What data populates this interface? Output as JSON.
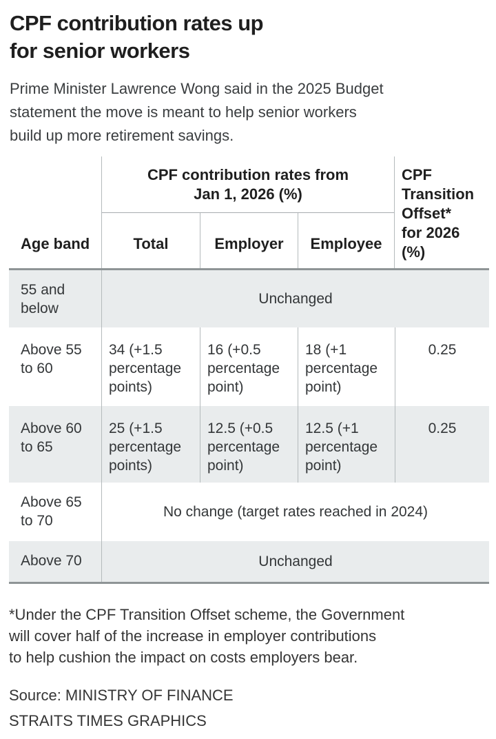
{
  "title_lines": [
    "CPF contribution rates up",
    "for senior workers"
  ],
  "intro_lines": [
    "Prime Minister Lawrence Wong said in the 2025 Budget",
    "statement the move is meant to help senior workers",
    "build up more retirement savings."
  ],
  "table": {
    "headers": {
      "age_band": "Age band",
      "group_lines": [
        "CPF contribution rates from",
        "Jan 1, 2026 (%)"
      ],
      "total": "Total",
      "employer": "Employer",
      "employee": "Employee",
      "offset_lines": [
        "CPF",
        "Transition",
        "Offset*",
        "for 2026",
        "(%)"
      ]
    },
    "rows": [
      {
        "age": [
          "55 and",
          "below"
        ],
        "merged": "Unchanged"
      },
      {
        "age": [
          "Above 55",
          "to 60"
        ],
        "total": [
          "34 (+1.5",
          "percentage",
          "points)"
        ],
        "employer": [
          "16 (+0.5",
          "percentage",
          "point)"
        ],
        "employee": [
          "18 (+1",
          "percentage",
          "point)"
        ],
        "offset": "0.25"
      },
      {
        "age": [
          "Above 60",
          "to 65"
        ],
        "total": [
          "25 (+1.5",
          "percentage",
          "points)"
        ],
        "employer": [
          "12.5 (+0.5",
          "percentage",
          "point)"
        ],
        "employee": [
          "12.5 (+1",
          "percentage",
          "point)"
        ],
        "offset": "0.25"
      },
      {
        "age": [
          "Above 65",
          "to 70"
        ],
        "merged": "No change (target rates reached in 2024)"
      },
      {
        "age": [
          "Above 70"
        ],
        "merged": "Unchanged"
      }
    ]
  },
  "footnote_lines": [
    "*Under the CPF Transition Offset scheme, the Government",
    "will cover half of the increase in employer contributions",
    "to help cushion the impact on costs employers bear."
  ],
  "source_lines": [
    "Source: MINISTRY OF FINANCE",
    "STRAITS TIMES GRAPHICS"
  ],
  "colors": {
    "row-shade": "#e9eced",
    "line-light": "#b4babc",
    "line-mid": "#a6acae",
    "line-heavy": "#8e9496",
    "ink-strong": "#1f1f1f",
    "ink-body": "#333638"
  },
  "chart_data": {
    "type": "table",
    "title": "CPF contribution rates up for senior workers",
    "group_header": "CPF contribution rates from Jan 1, 2026 (%)",
    "columns": [
      "Age band",
      "Total",
      "Employer",
      "Employee",
      "CPF Transition Offset* for 2026 (%)"
    ],
    "rows": [
      {
        "age_band": "55 and below",
        "merged_value": "Unchanged"
      },
      {
        "age_band": "Above 55 to 60",
        "total": "34 (+1.5 percentage points)",
        "employer": "16 (+0.5 percentage point)",
        "employee": "18 (+1 percentage point)",
        "transition_offset": "0.25"
      },
      {
        "age_band": "Above 60 to 65",
        "total": "25 (+1.5 percentage points)",
        "employer": "12.5 (+0.5 percentage point)",
        "employee": "12.5 (+1 percentage point)",
        "transition_offset": "0.25"
      },
      {
        "age_band": "Above 65 to 70",
        "merged_value": "No change (target rates reached in 2024)"
      },
      {
        "age_band": "Above 70",
        "merged_value": "Unchanged"
      }
    ]
  }
}
